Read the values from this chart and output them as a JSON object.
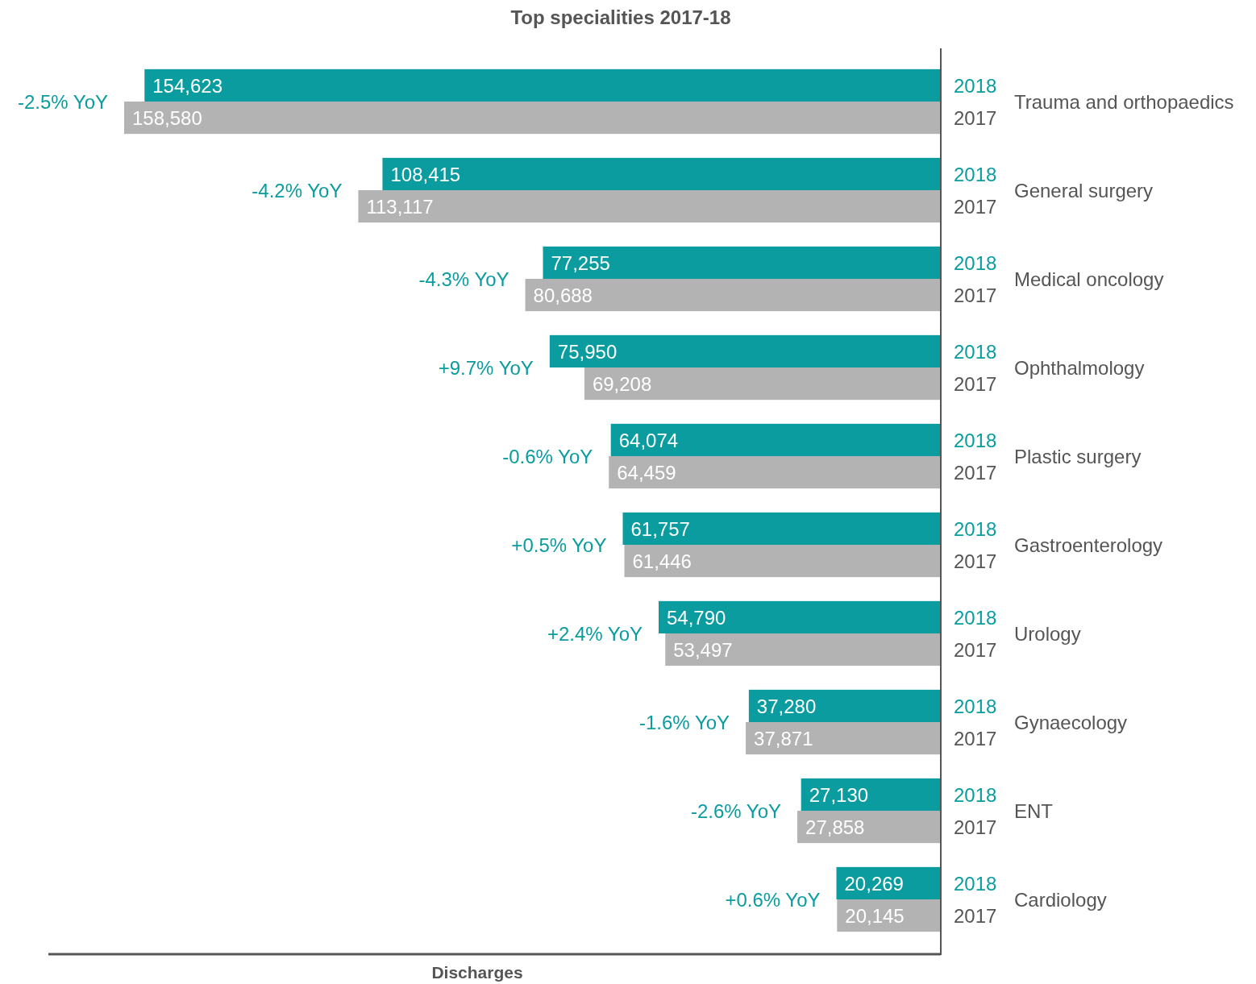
{
  "chart_data": {
    "type": "bar",
    "orientation": "horizontal",
    "title": "Top specialities 2017-18",
    "xlabel": "Discharges",
    "categories": [
      "Trauma and orthopaedics",
      "General surgery",
      "Medical oncology",
      "Ophthalmology",
      "Plastic surgery",
      "Gastroenterology",
      "Urology",
      "Gynaecology",
      "ENT",
      "Cardiology"
    ],
    "series": [
      {
        "name": "2018",
        "color": "#0a9c9f",
        "values": [
          154623,
          108415,
          77255,
          75950,
          64074,
          61757,
          54790,
          37280,
          27130,
          20269
        ],
        "value_labels": [
          "154,623",
          "108,415",
          "77,255",
          "75,950",
          "64,074",
          "61,757",
          "54,790",
          "37,280",
          "27,130",
          "20,269"
        ]
      },
      {
        "name": "2017",
        "color": "#b3b3b3",
        "values": [
          158580,
          113117,
          80688,
          69208,
          64459,
          61446,
          53497,
          37871,
          27858,
          20145
        ],
        "value_labels": [
          "158,580",
          "113,117",
          "80,688",
          "69,208",
          "64,459",
          "61,446",
          "53,497",
          "37,871",
          "27,858",
          "20,145"
        ]
      }
    ],
    "annotations": [
      "-2.5% YoY",
      "-4.2% YoY",
      "-4.3% YoY",
      "+9.7% YoY",
      "-0.6% YoY",
      "+0.5% YoY",
      "+2.4% YoY",
      "-1.6% YoY",
      "-2.6% YoY",
      "+0.6% YoY"
    ]
  }
}
